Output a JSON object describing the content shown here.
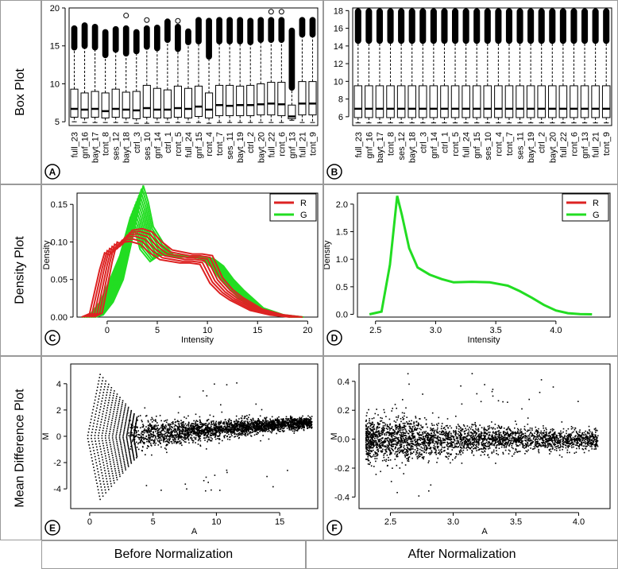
{
  "row_labels": [
    "Box Plot",
    "Density Plot",
    "Mean Difference Plot"
  ],
  "column_labels": [
    "Before Normalization",
    "After Normalization"
  ],
  "colors": {
    "R": "#dd2222",
    "G": "#22dd22",
    "points": "#000000",
    "frame": "#9a9a9a"
  },
  "chart_data": [
    {
      "panel": "A",
      "type": "box",
      "categories": [
        "full_23",
        "gnf_16",
        "bayt_17",
        "tcnt_8",
        "ses_12",
        "bayt_18",
        "ctrl_3",
        "ses_10",
        "gnf_14",
        "ctrl_1",
        "rcnt_5",
        "full_24",
        "gnf_15",
        "rcnt_4",
        "tcnt_7",
        "ses_11",
        "bayt_19",
        "ctrl_2",
        "bayt_20",
        "full_22",
        "rcnt_6",
        "gnf_13",
        "full_21",
        "tcnt_9"
      ],
      "ylim": [
        4.5,
        20
      ],
      "yticks": [
        5,
        10,
        15,
        20
      ],
      "boxes": [
        {
          "min": 5.0,
          "q1": 5.6,
          "median": 6.7,
          "q3": 9.3,
          "whisker_high": 14.8,
          "outlier_max": 17.3
        },
        {
          "min": 4.9,
          "q1": 5.5,
          "median": 6.6,
          "q3": 8.8,
          "whisker_high": 15.0,
          "outlier_max": 17.7
        },
        {
          "min": 4.9,
          "q1": 5.6,
          "median": 6.7,
          "q3": 9.0,
          "whisker_high": 14.8,
          "outlier_max": 17.5
        },
        {
          "min": 4.9,
          "q1": 5.5,
          "median": 6.4,
          "q3": 8.8,
          "whisker_high": 13.8,
          "outlier_max": 16.8
        },
        {
          "min": 4.9,
          "q1": 5.6,
          "median": 6.7,
          "q3": 9.3,
          "whisker_high": 14.5,
          "outlier_max": 17.2
        },
        {
          "min": 4.9,
          "q1": 5.5,
          "median": 6.6,
          "q3": 8.9,
          "whisker_high": 14.0,
          "outlier_max": 17.3
        },
        {
          "min": 4.8,
          "q1": 5.4,
          "median": 6.5,
          "q3": 9.0,
          "whisker_high": 14.3,
          "outlier_max": 16.8
        },
        {
          "min": 4.8,
          "q1": 5.6,
          "median": 6.8,
          "q3": 9.8,
          "whisker_high": 14.9,
          "outlier_max": 17.3
        },
        {
          "min": 4.9,
          "q1": 5.5,
          "median": 6.6,
          "q3": 9.4,
          "whisker_high": 14.7,
          "outlier_max": 17.4
        },
        {
          "min": 4.9,
          "q1": 5.5,
          "median": 6.6,
          "q3": 9.2,
          "whisker_high": 15.8,
          "outlier_max": 18.2
        },
        {
          "min": 4.9,
          "q1": 5.6,
          "median": 6.8,
          "q3": 9.7,
          "whisker_high": 14.6,
          "outlier_max": 17.5
        },
        {
          "min": 4.9,
          "q1": 5.5,
          "median": 6.7,
          "q3": 9.4,
          "whisker_high": 15.5,
          "outlier_max": 16.9
        },
        {
          "min": 4.9,
          "q1": 5.7,
          "median": 7.0,
          "q3": 9.7,
          "whisker_high": 15.6,
          "outlier_max": 18.4
        },
        {
          "min": 4.8,
          "q1": 5.5,
          "median": 6.6,
          "q3": 8.8,
          "whisker_high": 13.6,
          "outlier_max": 18.3
        },
        {
          "min": 4.9,
          "q1": 5.8,
          "median": 7.2,
          "q3": 9.8,
          "whisker_high": 15.6,
          "outlier_max": 18.4
        },
        {
          "min": 4.9,
          "q1": 5.8,
          "median": 7.1,
          "q3": 9.8,
          "whisker_high": 15.6,
          "outlier_max": 18.4
        },
        {
          "min": 4.9,
          "q1": 5.8,
          "median": 7.2,
          "q3": 9.7,
          "whisker_high": 15.6,
          "outlier_max": 18.4
        },
        {
          "min": 4.9,
          "q1": 5.8,
          "median": 7.2,
          "q3": 9.8,
          "whisker_high": 15.5,
          "outlier_max": 18.3
        },
        {
          "min": 4.9,
          "q1": 5.9,
          "median": 7.3,
          "q3": 10.0,
          "whisker_high": 15.8,
          "outlier_max": 18.4
        },
        {
          "min": 4.9,
          "q1": 5.9,
          "median": 7.4,
          "q3": 10.2,
          "whisker_high": 15.8,
          "outlier_max": 18.4
        },
        {
          "min": 4.9,
          "q1": 5.8,
          "median": 7.3,
          "q3": 10.2,
          "whisker_high": 15.8,
          "outlier_max": 18.4
        },
        {
          "min": 5.2,
          "q1": 5.4,
          "median": 5.7,
          "q3": 7.2,
          "whisker_high": 9.5,
          "outlier_max": 17.0
        },
        {
          "min": 4.9,
          "q1": 5.9,
          "median": 7.4,
          "q3": 10.3,
          "whisker_high": 16.5,
          "outlier_max": 18.4
        },
        {
          "min": 4.9,
          "q1": 5.9,
          "median": 7.4,
          "q3": 10.3,
          "whisker_high": 16.5,
          "outlier_max": 18.4
        }
      ],
      "isolated_outliers": [
        {
          "category": "bayt_18",
          "value": 19.0
        },
        {
          "category": "full_22",
          "value": 19.5
        },
        {
          "category": "rcnt_6",
          "value": 19.5
        },
        {
          "category": "ses_10",
          "value": 18.4
        },
        {
          "category": "rcnt_5",
          "value": 18.3
        }
      ]
    },
    {
      "panel": "B",
      "type": "box",
      "categories": [
        "full_23",
        "gnf_16",
        "bayt_17",
        "tcnt_8",
        "ses_12",
        "bayt_18",
        "ctrl_3",
        "gnf_14",
        "ctrl_1",
        "rcnt_5",
        "full_24",
        "gnf_15",
        "ses_10",
        "rcnt_4",
        "tcnt_7",
        "ses_11",
        "bayt_19",
        "ctrl_2",
        "bayt_20",
        "full_22",
        "rcnt_6",
        "gnf_13",
        "full_21",
        "tcnt_9"
      ],
      "ylim": [
        5,
        18.3
      ],
      "yticks": [
        6,
        8,
        10,
        12,
        14,
        16,
        18
      ],
      "box": {
        "min": 5.3,
        "q1": 5.9,
        "median": 6.9,
        "q3": 9.5,
        "whisker_high": 14.6,
        "outlier_max": 17.9
      }
    },
    {
      "panel": "C",
      "type": "line",
      "xlabel": "Intensity",
      "ylabel": "Density",
      "xlim": [
        -3,
        21
      ],
      "ylim": [
        0,
        0.165
      ],
      "xticks": [
        0,
        5,
        10,
        15,
        20
      ],
      "yticks": [
        0.0,
        0.05,
        0.1,
        0.15
      ],
      "legend": [
        "R",
        "G"
      ],
      "legend_position": "top-right",
      "series": [
        {
          "name": "R",
          "x": [
            -1.8,
            -1,
            0,
            0.5,
            1,
            1.5,
            2,
            3,
            4,
            5,
            6,
            8,
            9,
            10,
            11,
            12,
            13,
            15,
            17,
            19
          ],
          "y": [
            0,
            0.005,
            0.07,
            0.095,
            0.092,
            0.1,
            0.11,
            0.112,
            0.108,
            0.095,
            0.085,
            0.08,
            0.08,
            0.078,
            0.05,
            0.035,
            0.025,
            0.01,
            0.003,
            0
          ]
        },
        {
          "name": "G",
          "x": [
            -1.8,
            -1,
            0,
            1,
            2,
            2.5,
            3,
            3.5,
            4,
            5,
            6,
            8,
            9,
            10,
            11,
            12,
            13,
            15,
            17,
            19
          ],
          "y": [
            0,
            0.003,
            0.02,
            0.05,
            0.1,
            0.13,
            0.16,
            0.14,
            0.11,
            0.09,
            0.083,
            0.08,
            0.08,
            0.078,
            0.068,
            0.05,
            0.036,
            0.012,
            0.003,
            0
          ]
        }
      ]
    },
    {
      "panel": "D",
      "type": "line",
      "xlabel": "Intensity",
      "ylabel": "Density",
      "xlim": [
        2.35,
        4.45
      ],
      "ylim": [
        -0.05,
        2.2
      ],
      "xticks": [
        2.5,
        3.0,
        3.5,
        4.0
      ],
      "yticks": [
        0.0,
        0.5,
        1.0,
        1.5,
        2.0
      ],
      "legend": [
        "R",
        "G"
      ],
      "legend_position": "top-right",
      "series": [
        {
          "name": "G",
          "x": [
            2.45,
            2.55,
            2.62,
            2.68,
            2.72,
            2.78,
            2.85,
            2.95,
            3.05,
            3.15,
            3.3,
            3.45,
            3.6,
            3.7,
            3.8,
            3.9,
            4.0,
            4.1,
            4.2,
            4.3
          ],
          "y": [
            0,
            0.05,
            0.9,
            2.15,
            1.8,
            1.2,
            0.85,
            0.72,
            0.64,
            0.58,
            0.59,
            0.58,
            0.52,
            0.42,
            0.3,
            0.17,
            0.07,
            0.02,
            0.005,
            0
          ]
        }
      ]
    },
    {
      "panel": "E",
      "type": "scatter",
      "xlabel": "A",
      "ylabel": "M",
      "xlim": [
        -1.5,
        18
      ],
      "ylim": [
        -5.5,
        5.5
      ],
      "xticks": [
        0,
        5,
        10,
        15
      ],
      "yticks": [
        -4,
        -2,
        0,
        2,
        4
      ]
    },
    {
      "panel": "F",
      "type": "scatter",
      "xlabel": "A",
      "ylabel": "M",
      "xlim": [
        2.25,
        4.25
      ],
      "ylim": [
        -0.48,
        0.52
      ],
      "xticks": [
        2.5,
        3.0,
        3.5,
        4.0
      ],
      "yticks": [
        -0.4,
        -0.2,
        0.0,
        0.2,
        0.4
      ]
    }
  ]
}
